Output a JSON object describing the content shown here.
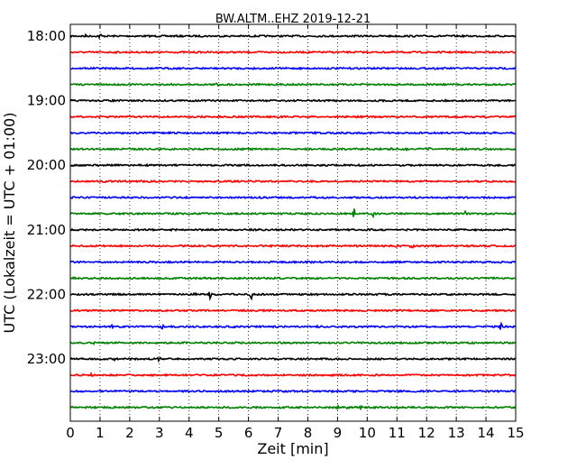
{
  "chart_data": {
    "type": "line",
    "title": "BW.ALTM..EHZ 2019-12-21",
    "xlabel": "Zeit  [min]",
    "ylabel": "UTC (Lokalzeit = UTC + 01:00)",
    "xlim": [
      0,
      15
    ],
    "x_ticks": [
      "0",
      "1",
      "2",
      "3",
      "4",
      "5",
      "6",
      "7",
      "8",
      "9",
      "10",
      "11",
      "12",
      "13",
      "14",
      "15"
    ],
    "y_ticks": [
      "18:00",
      "19:00",
      "20:00",
      "21:00",
      "22:00",
      "23:00"
    ],
    "grid": "vertical dotted",
    "trace_colors": [
      "#000000",
      "#ff0000",
      "#0000ff",
      "#008000"
    ],
    "traces": [
      {
        "start": "18:00",
        "events": [
          {
            "t": 0.5,
            "amp": 0.25
          },
          {
            "t": 1.0,
            "amp": 0.45
          },
          {
            "t": 14.3,
            "amp": 0.1
          }
        ]
      },
      {
        "start": "18:15",
        "events": []
      },
      {
        "start": "18:30",
        "events": [
          {
            "t": 9.3,
            "amp": 0.12
          }
        ]
      },
      {
        "start": "18:45",
        "events": [
          {
            "t": 3.4,
            "amp": 0.2
          },
          {
            "t": 4.95,
            "amp": 0.45
          },
          {
            "t": 9.9,
            "amp": 0.1
          }
        ]
      },
      {
        "start": "19:00",
        "events": []
      },
      {
        "start": "19:15",
        "events": []
      },
      {
        "start": "19:30",
        "events": []
      },
      {
        "start": "19:45",
        "events": [
          {
            "t": 3.0,
            "amp": 0.12
          },
          {
            "t": 6.5,
            "amp": 0.12
          },
          {
            "t": 10.8,
            "amp": 0.3
          },
          {
            "t": 11.3,
            "amp": 0.25
          },
          {
            "t": 12.1,
            "amp": 0.25
          }
        ]
      },
      {
        "start": "20:00",
        "events": []
      },
      {
        "start": "20:15",
        "events": [
          {
            "t": 13.6,
            "amp": 0.15
          }
        ]
      },
      {
        "start": "20:30",
        "events": []
      },
      {
        "start": "20:45",
        "events": [
          {
            "t": 4.6,
            "amp": 0.15
          },
          {
            "t": 5.3,
            "amp": 0.15
          },
          {
            "t": 9.55,
            "amp": 0.85
          },
          {
            "t": 10.2,
            "amp": 0.45
          },
          {
            "t": 13.3,
            "amp": 0.5
          }
        ]
      },
      {
        "start": "21:00",
        "events": []
      },
      {
        "start": "21:15",
        "events": [
          {
            "t": 11.0,
            "amp": 0.25
          },
          {
            "t": 11.5,
            "amp": 0.6
          }
        ]
      },
      {
        "start": "21:30",
        "events": []
      },
      {
        "start": "21:45",
        "events": []
      },
      {
        "start": "22:00",
        "events": [
          {
            "t": 4.2,
            "amp": 0.25
          },
          {
            "t": 4.7,
            "amp": 0.55
          },
          {
            "t": 6.1,
            "amp": 1.0
          },
          {
            "t": 7.2,
            "amp": 0.1
          }
        ]
      },
      {
        "start": "22:15",
        "events": []
      },
      {
        "start": "22:30",
        "events": [
          {
            "t": 1.4,
            "amp": 0.25
          },
          {
            "t": 3.1,
            "amp": 0.3
          },
          {
            "t": 5.5,
            "amp": 0.3
          },
          {
            "t": 8.3,
            "amp": 0.3
          },
          {
            "t": 14.5,
            "amp": 0.5
          }
        ]
      },
      {
        "start": "22:45",
        "events": [
          {
            "t": 0.8,
            "amp": 0.25
          },
          {
            "t": 4.0,
            "amp": 0.1
          },
          {
            "t": 12.8,
            "amp": 0.15
          }
        ]
      },
      {
        "start": "23:00",
        "events": [
          {
            "t": 1.5,
            "amp": 0.35
          },
          {
            "t": 3.0,
            "amp": 0.45
          },
          {
            "t": 7.6,
            "amp": 0.1
          }
        ]
      },
      {
        "start": "23:15",
        "events": [
          {
            "t": 0.4,
            "amp": 0.2
          },
          {
            "t": 0.7,
            "amp": 0.3
          }
        ]
      },
      {
        "start": "23:30",
        "events": []
      },
      {
        "start": "23:45",
        "events": [
          {
            "t": 9.0,
            "amp": 0.3
          },
          {
            "t": 9.35,
            "amp": 0.3
          },
          {
            "t": 9.8,
            "amp": 0.25
          },
          {
            "t": 11.0,
            "amp": 0.2
          }
        ]
      }
    ]
  }
}
